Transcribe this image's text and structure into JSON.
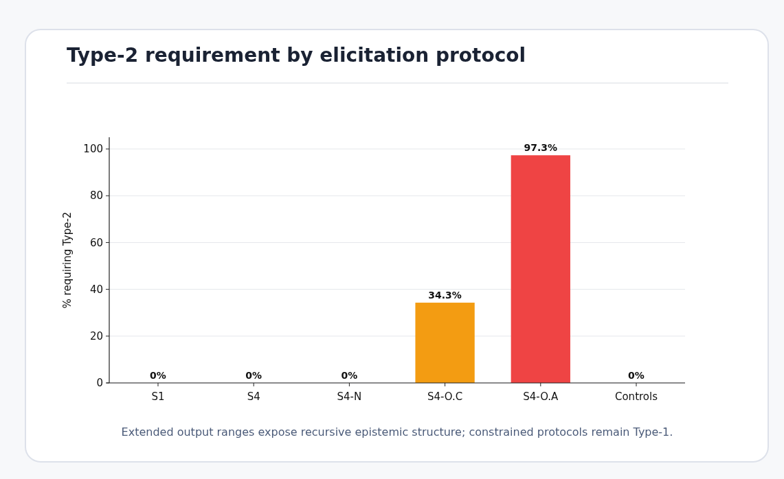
{
  "chart_data": {
    "type": "bar",
    "title": "Type-2 requirement by elicitation protocol",
    "ylabel": "% requiring Type-2",
    "categories": [
      "S1",
      "S4",
      "S4-N",
      "S4-O.C",
      "S4-O.A",
      "Controls"
    ],
    "values": [
      0,
      0,
      0,
      34.3,
      97.3,
      0
    ],
    "colors": [
      "#94a3b8",
      "#94a3b8",
      "#94a3b8",
      "#f39c12",
      "#ef4444",
      "#94a3b8"
    ],
    "value_labels": [
      "0%",
      "0%",
      "0%",
      "34.3%",
      "97.3%",
      "0%"
    ],
    "ylim": [
      0,
      105
    ],
    "yticks": [
      0,
      20,
      40,
      60,
      80,
      100
    ],
    "grid": "y",
    "annotations": [
      "Extended output ranges expose recursive epistemic structure; constrained protocols remain Type-1."
    ]
  }
}
